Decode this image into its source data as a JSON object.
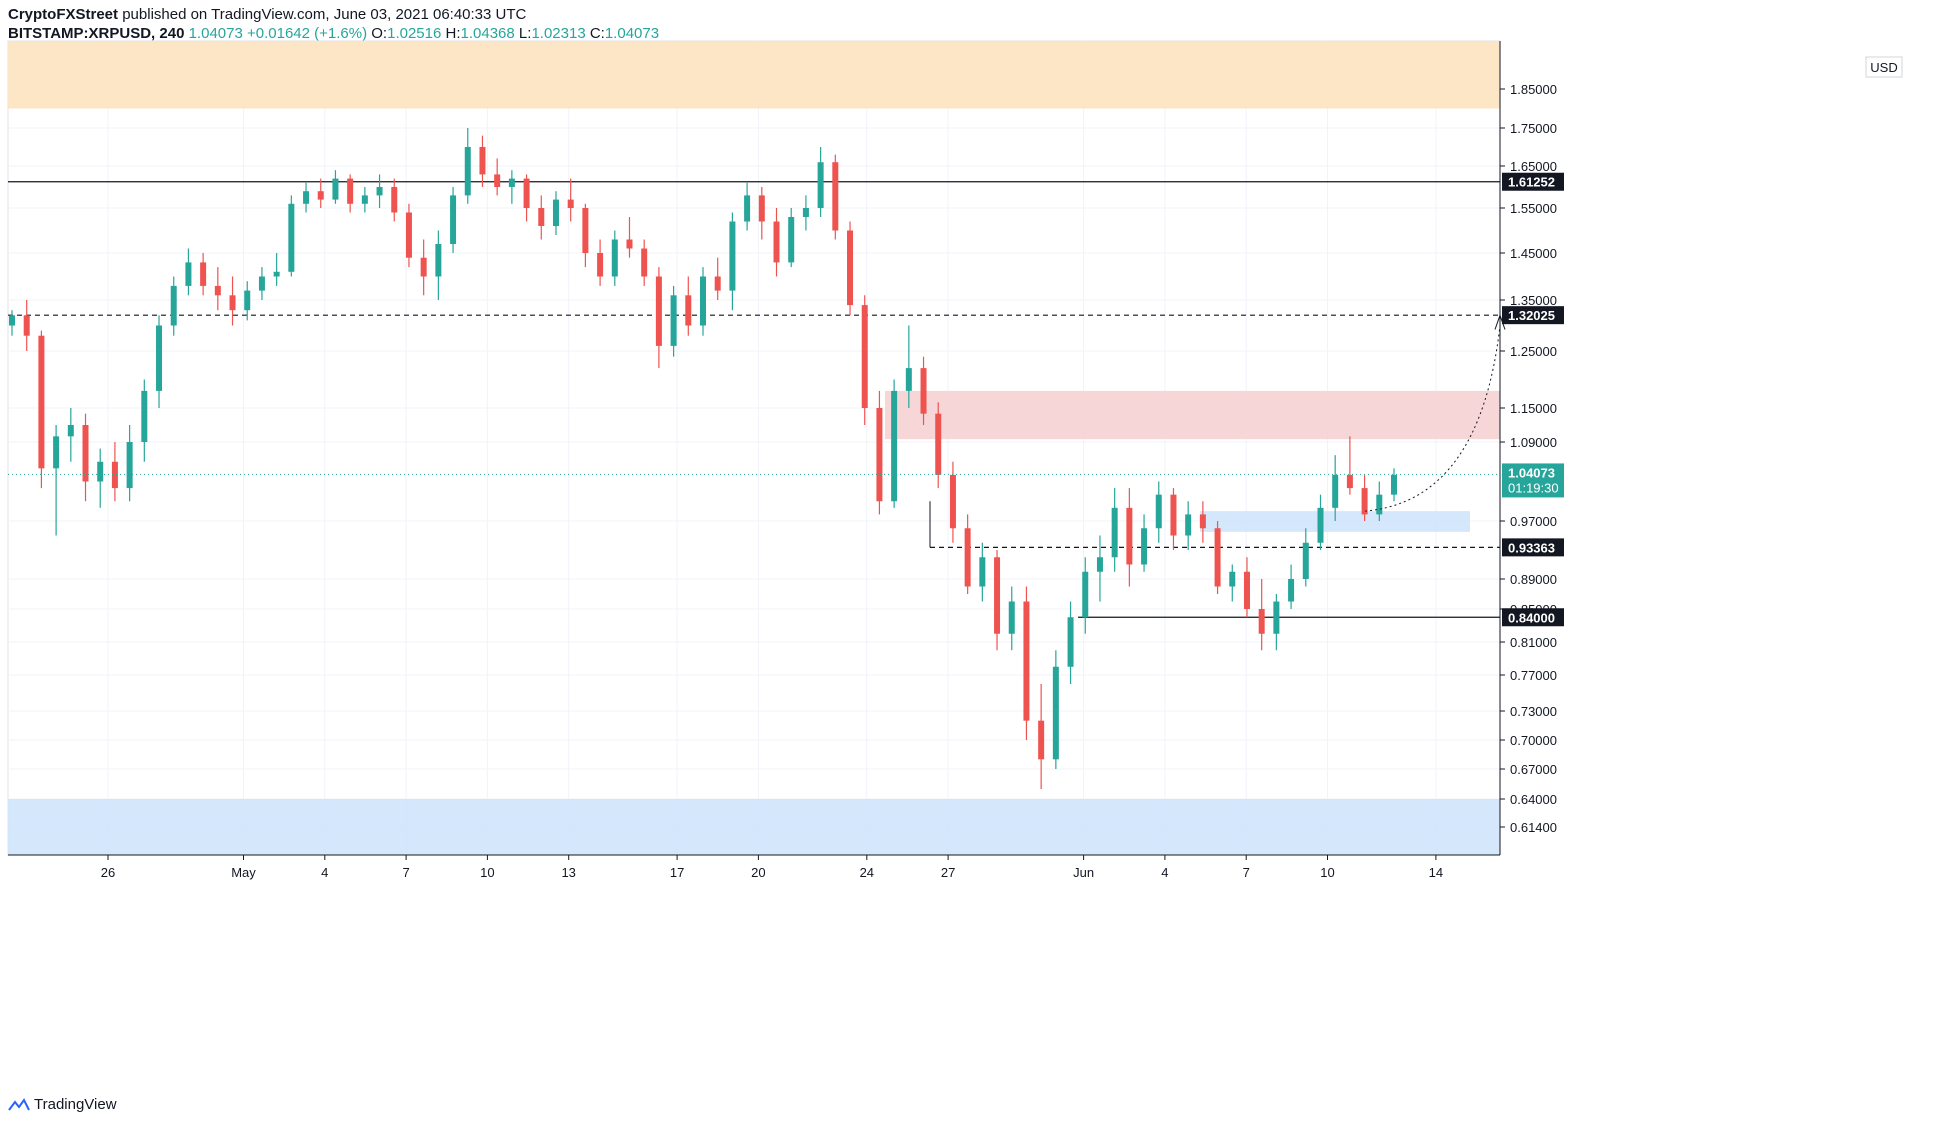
{
  "header": {
    "publisher": "CryptoFXStreet",
    "published_text": "published on TradingView.com, June 03, 2021 06:40:33 UTC",
    "symbol": "BITSTAMP:XRPUSD, 240",
    "last": "1.04073",
    "change": "+0.01642 (+1.6%)",
    "o_label": "O:",
    "o_value": "1.02516",
    "h_label": "H:",
    "h_value": "1.04368",
    "l_label": "L:",
    "l_value": "1.02313",
    "c_label": "C:",
    "c_value": "1.04073"
  },
  "footer": {
    "brand": "TradingView"
  },
  "colors": {
    "up": "#26a69a",
    "down": "#ef5350",
    "supply_zone": "#fde3c0",
    "resistance_zone": "#f6d1d3",
    "demand_zone": "#cfe4fb",
    "price_line": "#26a69a"
  },
  "chart_data": {
    "type": "candlestick",
    "currency_label": "USD",
    "y_tick_labels": [
      "1.85000",
      "1.75000",
      "1.65000",
      "1.55000",
      "1.45000",
      "1.35000",
      "1.25000",
      "1.15000",
      "1.09000",
      "0.97000",
      "0.89000",
      "0.85000",
      "0.81000",
      "0.77000",
      "0.73000",
      "0.70000",
      "0.67000",
      "0.64000",
      "0.61400"
    ],
    "y_ticks": [
      1.85,
      1.75,
      1.65,
      1.55,
      1.45,
      1.35,
      1.25,
      1.15,
      1.09,
      0.97,
      0.89,
      0.85,
      0.81,
      0.77,
      0.73,
      0.7,
      0.67,
      0.64,
      0.614
    ],
    "x_tick_labels": [
      "26",
      "May",
      "4",
      "7",
      "10",
      "13",
      "17",
      "20",
      "24",
      "27",
      "Jun",
      "4",
      "7",
      "10",
      "14"
    ],
    "x_ticks_day_index": [
      5,
      10,
      13,
      16,
      19,
      22,
      26,
      29,
      33,
      36,
      41,
      44,
      47,
      50,
      54
    ],
    "horizontal_levels": [
      {
        "value": 1.61252,
        "label": "1.61252",
        "style": "solid"
      },
      {
        "value": 1.32025,
        "label": "1.32025",
        "style": "dashed"
      },
      {
        "value": 0.93363,
        "label": "0.93363",
        "style": "dashed"
      },
      {
        "value": 0.84,
        "label": "0.84000",
        "style": "solid"
      }
    ],
    "current_price": {
      "value": 1.04073,
      "label": "1.04073",
      "countdown": "01:19:30"
    },
    "zones": [
      {
        "name": "supply",
        "from": 1.8,
        "to": 1.95
      },
      {
        "name": "resistance",
        "from": 1.095,
        "to": 1.18
      },
      {
        "name": "demand-mid",
        "from": 0.955,
        "to": 0.985
      },
      {
        "name": "demand-low",
        "from": 0.59,
        "to": 0.64
      }
    ],
    "candles": [
      [
        1.3,
        1.33,
        1.28,
        1.32
      ],
      [
        1.32,
        1.35,
        1.25,
        1.28
      ],
      [
        1.28,
        1.29,
        1.02,
        1.05
      ],
      [
        1.05,
        1.12,
        0.95,
        1.1
      ],
      [
        1.1,
        1.15,
        1.06,
        1.12
      ],
      [
        1.12,
        1.14,
        1.0,
        1.03
      ],
      [
        1.03,
        1.08,
        0.99,
        1.06
      ],
      [
        1.06,
        1.09,
        1.0,
        1.02
      ],
      [
        1.02,
        1.12,
        1.0,
        1.09
      ],
      [
        1.09,
        1.2,
        1.06,
        1.18
      ],
      [
        1.18,
        1.32,
        1.15,
        1.3
      ],
      [
        1.3,
        1.4,
        1.28,
        1.38
      ],
      [
        1.38,
        1.46,
        1.36,
        1.43
      ],
      [
        1.43,
        1.45,
        1.36,
        1.38
      ],
      [
        1.38,
        1.42,
        1.33,
        1.36
      ],
      [
        1.36,
        1.4,
        1.3,
        1.33
      ],
      [
        1.33,
        1.39,
        1.31,
        1.37
      ],
      [
        1.37,
        1.42,
        1.35,
        1.4
      ],
      [
        1.4,
        1.45,
        1.38,
        1.41
      ],
      [
        1.41,
        1.58,
        1.4,
        1.56
      ],
      [
        1.56,
        1.61,
        1.54,
        1.59
      ],
      [
        1.59,
        1.62,
        1.55,
        1.57
      ],
      [
        1.57,
        1.64,
        1.56,
        1.62
      ],
      [
        1.62,
        1.63,
        1.54,
        1.56
      ],
      [
        1.56,
        1.6,
        1.54,
        1.58
      ],
      [
        1.58,
        1.63,
        1.55,
        1.6
      ],
      [
        1.6,
        1.62,
        1.52,
        1.54
      ],
      [
        1.54,
        1.56,
        1.42,
        1.44
      ],
      [
        1.44,
        1.48,
        1.36,
        1.4
      ],
      [
        1.4,
        1.5,
        1.35,
        1.47
      ],
      [
        1.47,
        1.6,
        1.45,
        1.58
      ],
      [
        1.58,
        1.75,
        1.56,
        1.7
      ],
      [
        1.7,
        1.73,
        1.6,
        1.63
      ],
      [
        1.63,
        1.67,
        1.58,
        1.6
      ],
      [
        1.6,
        1.64,
        1.56,
        1.62
      ],
      [
        1.62,
        1.63,
        1.52,
        1.55
      ],
      [
        1.55,
        1.58,
        1.48,
        1.51
      ],
      [
        1.51,
        1.59,
        1.49,
        1.57
      ],
      [
        1.57,
        1.62,
        1.52,
        1.55
      ],
      [
        1.55,
        1.56,
        1.42,
        1.45
      ],
      [
        1.45,
        1.48,
        1.38,
        1.4
      ],
      [
        1.4,
        1.5,
        1.38,
        1.48
      ],
      [
        1.48,
        1.53,
        1.44,
        1.46
      ],
      [
        1.46,
        1.48,
        1.38,
        1.4
      ],
      [
        1.4,
        1.42,
        1.22,
        1.26
      ],
      [
        1.26,
        1.38,
        1.24,
        1.36
      ],
      [
        1.36,
        1.4,
        1.28,
        1.3
      ],
      [
        1.3,
        1.42,
        1.28,
        1.4
      ],
      [
        1.4,
        1.44,
        1.35,
        1.37
      ],
      [
        1.37,
        1.54,
        1.33,
        1.52
      ],
      [
        1.52,
        1.61,
        1.5,
        1.58
      ],
      [
        1.58,
        1.6,
        1.48,
        1.52
      ],
      [
        1.52,
        1.55,
        1.4,
        1.43
      ],
      [
        1.43,
        1.55,
        1.42,
        1.53
      ],
      [
        1.53,
        1.58,
        1.5,
        1.55
      ],
      [
        1.55,
        1.7,
        1.53,
        1.66
      ],
      [
        1.66,
        1.68,
        1.48,
        1.5
      ],
      [
        1.5,
        1.52,
        1.32,
        1.34
      ],
      [
        1.34,
        1.36,
        1.12,
        1.15
      ],
      [
        1.15,
        1.18,
        0.98,
        1.0
      ],
      [
        1.0,
        1.2,
        0.99,
        1.18
      ],
      [
        1.18,
        1.3,
        1.15,
        1.22
      ],
      [
        1.22,
        1.24,
        1.12,
        1.14
      ],
      [
        1.14,
        1.16,
        1.02,
        1.04
      ],
      [
        1.04,
        1.06,
        0.94,
        0.96
      ],
      [
        0.96,
        0.98,
        0.87,
        0.88
      ],
      [
        0.88,
        0.94,
        0.86,
        0.92
      ],
      [
        0.92,
        0.93,
        0.8,
        0.82
      ],
      [
        0.82,
        0.88,
        0.8,
        0.86
      ],
      [
        0.86,
        0.88,
        0.7,
        0.72
      ],
      [
        0.72,
        0.76,
        0.65,
        0.68
      ],
      [
        0.68,
        0.8,
        0.67,
        0.78
      ],
      [
        0.78,
        0.86,
        0.76,
        0.84
      ],
      [
        0.84,
        0.92,
        0.82,
        0.9
      ],
      [
        0.9,
        0.95,
        0.86,
        0.92
      ],
      [
        0.92,
        1.02,
        0.9,
        0.99
      ],
      [
        0.99,
        1.02,
        0.88,
        0.91
      ],
      [
        0.91,
        0.98,
        0.9,
        0.96
      ],
      [
        0.96,
        1.03,
        0.94,
        1.01
      ],
      [
        1.01,
        1.02,
        0.93,
        0.95
      ],
      [
        0.95,
        1.0,
        0.93,
        0.98
      ],
      [
        0.98,
        1.0,
        0.94,
        0.96
      ],
      [
        0.96,
        0.97,
        0.87,
        0.88
      ],
      [
        0.88,
        0.91,
        0.86,
        0.9
      ],
      [
        0.9,
        0.92,
        0.84,
        0.85
      ],
      [
        0.85,
        0.89,
        0.8,
        0.82
      ],
      [
        0.82,
        0.87,
        0.8,
        0.86
      ],
      [
        0.86,
        0.91,
        0.85,
        0.89
      ],
      [
        0.89,
        0.96,
        0.88,
        0.94
      ],
      [
        0.94,
        1.01,
        0.93,
        0.99
      ],
      [
        0.99,
        1.07,
        0.97,
        1.04
      ],
      [
        1.04,
        1.1,
        1.01,
        1.02
      ],
      [
        1.02,
        1.04,
        0.97,
        0.98
      ],
      [
        0.98,
        1.03,
        0.97,
        1.01
      ],
      [
        1.01,
        1.05,
        1.0,
        1.04
      ]
    ]
  }
}
